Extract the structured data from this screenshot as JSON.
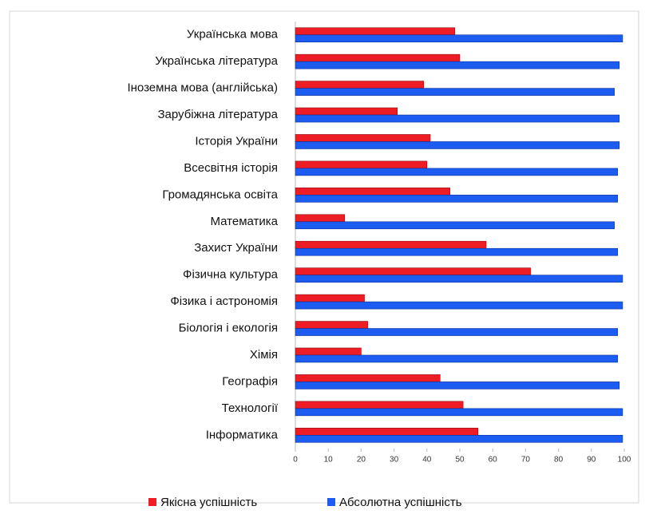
{
  "chart_data": {
    "type": "bar",
    "orientation": "horizontal",
    "categories": [
      "Українська мова",
      "Українська література",
      "Іноземна мова (англійська)",
      "Зарубіжна література",
      "Історія України",
      "Всесвітня історія",
      "Громадянська освіта",
      "Математика",
      "Захист України",
      "Фізична культура",
      "Фізика і астрономія",
      "Біологія і екологія",
      "Хімія",
      "Географія",
      "Технології",
      "Інформатика"
    ],
    "series": [
      {
        "name": "Якісна успішність",
        "color": "#ee1c25",
        "values": [
          48.5,
          50,
          39,
          31,
          41,
          40,
          47,
          15,
          58,
          71.5,
          21,
          22,
          20,
          44,
          51,
          55.5
        ]
      },
      {
        "name": "Абсолютна успішність",
        "color": "#1c5cf0",
        "values": [
          99.5,
          98.5,
          97,
          98.5,
          98.5,
          98,
          98,
          97,
          98,
          99.5,
          99.5,
          98,
          98,
          98.5,
          99.5,
          99.5
        ]
      }
    ],
    "xlim": [
      0,
      100
    ],
    "xticks": [
      0,
      10,
      20,
      30,
      40,
      50,
      60,
      70,
      80,
      90,
      100
    ],
    "grid": false,
    "legend": "bottom"
  }
}
